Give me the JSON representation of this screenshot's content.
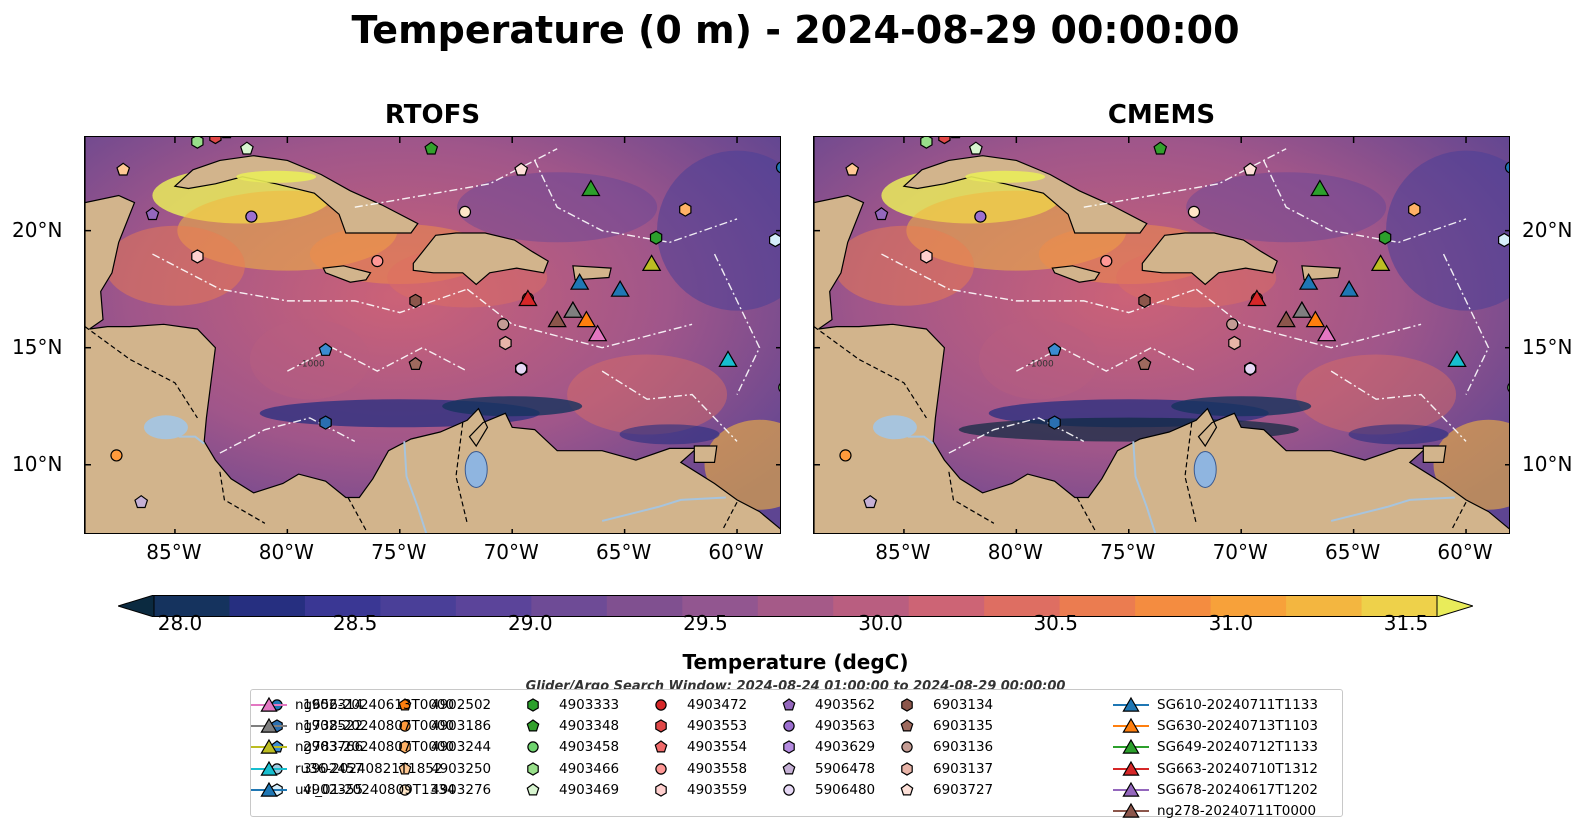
{
  "figure_title": "Temperature (0 m) - 2024-08-29 00:00:00",
  "panels": [
    {
      "title": "RTOFS"
    },
    {
      "title": "CMEMS"
    }
  ],
  "lon_ticks": [
    "85°W",
    "80°W",
    "75°W",
    "70°W",
    "65°W",
    "60°W"
  ],
  "lat_ticks": [
    "20°N",
    "15°N",
    "10°N"
  ],
  "map_extent": {
    "lon": [
      -89,
      -58
    ],
    "lat": [
      7,
      24
    ]
  },
  "colorbar": {
    "label": "Temperature (degC)",
    "ticks": [
      "28.0",
      "28.5",
      "29.0",
      "29.5",
      "30.0",
      "30.5",
      "31.0",
      "31.5"
    ],
    "range": [
      28.0,
      31.5
    ],
    "colors": [
      "#0b2a40",
      "#15335e",
      "#262f80",
      "#3a3794",
      "#4a3f98",
      "#5b449a",
      "#6e4b96",
      "#805090",
      "#925690",
      "#a55a88",
      "#b95e80",
      "#cd6475",
      "#de6e62",
      "#eb7c50",
      "#f48c40",
      "#f7a13a",
      "#f3b640",
      "#eed14a",
      "#e9ec5a"
    ]
  },
  "search_window": "Glider/Argo Search Window: 2024-08-24 01:00:00 to 2024-08-29 00:00:00",
  "legend": [
    {
      "label": "1902314",
      "marker": "circle",
      "color": "#1f77b4"
    },
    {
      "label": "1902522",
      "marker": "hexagon",
      "color": "#2a6fb0"
    },
    {
      "label": "2903766",
      "marker": "pentagon",
      "color": "#3b8bd0"
    },
    {
      "label": "3902457",
      "marker": "circle",
      "color": "#9ecae1"
    },
    {
      "label": "4902355",
      "marker": "hexagon",
      "color": "#d6eefa"
    },
    {
      "label": "4902502",
      "marker": "pentagon",
      "color": "#ff7f0e"
    },
    {
      "label": "4903186",
      "marker": "circle",
      "color": "#ff9a3c"
    },
    {
      "label": "4903244",
      "marker": "hexagon",
      "color": "#ffb266"
    },
    {
      "label": "4903250",
      "marker": "pentagon",
      "color": "#ffc994"
    },
    {
      "label": "4903276",
      "marker": "circle",
      "color": "#ffe6c7"
    },
    {
      "label": "4903333",
      "marker": "hexagon",
      "color": "#2ca02c"
    },
    {
      "label": "4903348",
      "marker": "pentagon",
      "color": "#33a02c"
    },
    {
      "label": "4903458",
      "marker": "circle",
      "color": "#6fd46f"
    },
    {
      "label": "4903466",
      "marker": "hexagon",
      "color": "#98df8a"
    },
    {
      "label": "4903469",
      "marker": "pentagon",
      "color": "#d8f5d0"
    },
    {
      "label": "4903472",
      "marker": "circle",
      "color": "#d62728"
    },
    {
      "label": "4903553",
      "marker": "hexagon",
      "color": "#e04848"
    },
    {
      "label": "4903554",
      "marker": "pentagon",
      "color": "#f06a6a"
    },
    {
      "label": "4903558",
      "marker": "circle",
      "color": "#ff9896"
    },
    {
      "label": "4903559",
      "marker": "hexagon",
      "color": "#ffd0cf"
    },
    {
      "label": "4903562",
      "marker": "pentagon",
      "color": "#9467bd"
    },
    {
      "label": "4903563",
      "marker": "circle",
      "color": "#9c6fd0"
    },
    {
      "label": "4903629",
      "marker": "hexagon",
      "color": "#b58be0"
    },
    {
      "label": "5906478",
      "marker": "pentagon",
      "color": "#c5b0d5"
    },
    {
      "label": "5906480",
      "marker": "circle",
      "color": "#e6d8f5"
    },
    {
      "label": "6903134",
      "marker": "hexagon",
      "color": "#8c564b"
    },
    {
      "label": "6903135",
      "marker": "pentagon",
      "color": "#9e6a5e"
    },
    {
      "label": "6903136",
      "marker": "circle",
      "color": "#c49c94"
    },
    {
      "label": "6903137",
      "marker": "hexagon",
      "color": "#e8b4a8"
    },
    {
      "label": "6903727",
      "marker": "pentagon",
      "color": "#fde0d8"
    },
    {
      "label": "SG610-20240711T1133",
      "marker": "triangle",
      "color": "#1f77b4"
    },
    {
      "label": "SG630-20240713T1103",
      "marker": "triangle",
      "color": "#ff7f0e"
    },
    {
      "label": "SG649-20240712T1133",
      "marker": "triangle",
      "color": "#2ca02c"
    },
    {
      "label": "SG663-20240710T1312",
      "marker": "triangle",
      "color": "#d62728"
    },
    {
      "label": "SG678-20240617T1202",
      "marker": "triangle",
      "color": "#9467bd"
    },
    {
      "label": "ng278-20240711T0000",
      "marker": "triangle",
      "color": "#8c564b"
    },
    {
      "label": "ng656-20240613T0000",
      "marker": "triangle",
      "color": "#e377c2"
    },
    {
      "label": "ng738-20240807T0000",
      "marker": "triangle",
      "color": "#7f7f7f"
    },
    {
      "label": "ng783-20240807T0000",
      "marker": "triangle",
      "color": "#bcbd22"
    },
    {
      "label": "ru36-20240821T1852",
      "marker": "triangle",
      "color": "#17becf"
    },
    {
      "label": "uvi_01-20240809T1334",
      "marker": "triangle",
      "color": "#1f77b4"
    }
  ],
  "markers": [
    {
      "id": "1902314",
      "lon": -58.0,
      "lat": 22.7
    },
    {
      "id": "1902522",
      "lon": -78.3,
      "lat": 11.8
    },
    {
      "id": "2903766",
      "lon": -78.3,
      "lat": 14.9
    },
    {
      "id": "3902457",
      "lon": -58.3,
      "lat": 19.6
    },
    {
      "id": "4902355",
      "lon": -58.3,
      "lat": 19.6
    },
    {
      "id": "4902502",
      "lon": -82.7,
      "lat": 24.2
    },
    {
      "id": "4903186",
      "lon": -87.6,
      "lat": 10.4
    },
    {
      "id": "4903244",
      "lon": -62.3,
      "lat": 20.9
    },
    {
      "id": "4903250",
      "lon": -87.3,
      "lat": 22.6
    },
    {
      "id": "4903276",
      "lon": -72.1,
      "lat": 20.8
    },
    {
      "id": "4903333",
      "lon": -63.6,
      "lat": 19.7
    },
    {
      "id": "4903348",
      "lon": -73.6,
      "lat": 23.5
    },
    {
      "id": "4903458",
      "lon": -57.9,
      "lat": 13.3
    },
    {
      "id": "4903466",
      "lon": -84.0,
      "lat": 23.8
    },
    {
      "id": "4903469",
      "lon": -81.8,
      "lat": 23.5
    },
    {
      "id": "4903472",
      "lon": -69.3,
      "lat": 17.1
    },
    {
      "id": "4903553",
      "lon": -83.2,
      "lat": 24.0
    },
    {
      "id": "4903554",
      "lon": -83.1,
      "lat": 24.3
    },
    {
      "id": "4903558",
      "lon": -76.0,
      "lat": 18.7
    },
    {
      "id": "4903559",
      "lon": -84.0,
      "lat": 18.9
    },
    {
      "id": "4903562",
      "lon": -86.0,
      "lat": 20.7
    },
    {
      "id": "4903563",
      "lon": -81.6,
      "lat": 20.6
    },
    {
      "id": "4903629",
      "lon": -69.6,
      "lat": 14.1
    },
    {
      "id": "5906478",
      "lon": -86.5,
      "lat": 8.4
    },
    {
      "id": "5906480",
      "lon": -69.6,
      "lat": 14.1
    },
    {
      "id": "6903134",
      "lon": -74.3,
      "lat": 17.0
    },
    {
      "id": "6903135",
      "lon": -74.3,
      "lat": 14.3
    },
    {
      "id": "6903136",
      "lon": -70.4,
      "lat": 16.0
    },
    {
      "id": "6903137",
      "lon": -70.3,
      "lat": 15.2
    },
    {
      "id": "6903727",
      "lon": -69.6,
      "lat": 22.6
    },
    {
      "id": "SG610-20240711T1133",
      "lon": -67.0,
      "lat": 17.8
    },
    {
      "id": "SG630-20240713T1103",
      "lon": -66.7,
      "lat": 16.2
    },
    {
      "id": "SG649-20240712T1133",
      "lon": -66.5,
      "lat": 21.8
    },
    {
      "id": "SG663-20240710T1312",
      "lon": -69.3,
      "lat": 17.1
    },
    {
      "id": "SG678-20240617T1202",
      "lon": -67.3,
      "lat": 16.6
    },
    {
      "id": "ng278-20240711T0000",
      "lon": -68.0,
      "lat": 16.2
    },
    {
      "id": "ng656-20240613T0000",
      "lon": -66.2,
      "lat": 15.6
    },
    {
      "id": "ng738-20240807T0000",
      "lon": -67.3,
      "lat": 16.6
    },
    {
      "id": "ng783-20240807T0000",
      "lon": -63.8,
      "lat": 18.6
    },
    {
      "id": "ru36-20240821T1852",
      "lon": -60.4,
      "lat": 14.5
    },
    {
      "id": "uvi_01-20240809T1334",
      "lon": -65.2,
      "lat": 17.5
    }
  ],
  "bathymetry_label": "-1000"
}
